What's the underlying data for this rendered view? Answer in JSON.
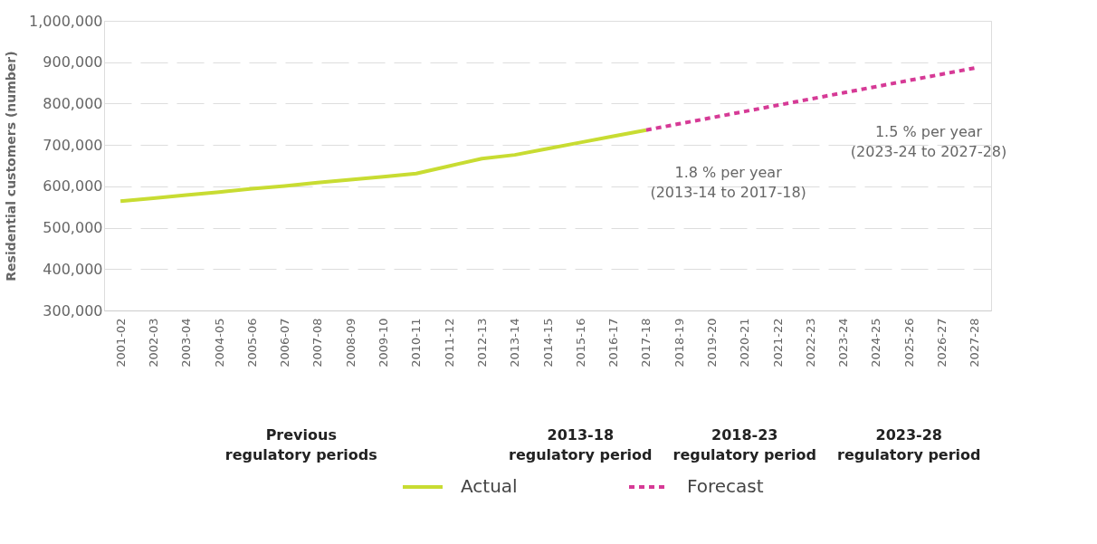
{
  "chart_data": {
    "type": "line",
    "ylabel": "Residential customers (number)",
    "categories": [
      "2001-02",
      "2002-03",
      "2003-04",
      "2004-05",
      "2005-06",
      "2006-07",
      "2007-08",
      "2008-09",
      "2009-10",
      "2010-11",
      "2011-12",
      "2012-13",
      "2013-14",
      "2014-15",
      "2015-16",
      "2016-17",
      "2017-18",
      "2018-19",
      "2019-20",
      "2020-21",
      "2021-22",
      "2022-23",
      "2023-24",
      "2024-25",
      "2025-26",
      "2026-27",
      "2027-28"
    ],
    "series": [
      {
        "name": "Actual",
        "color": "#c8dc32",
        "line_style": "solid",
        "values": [
          564000,
          571000,
          579000,
          586000,
          594000,
          601000,
          609000,
          616000,
          623000,
          631000,
          649000,
          667000,
          676000,
          691000,
          706000,
          721000,
          736000,
          null,
          null,
          null,
          null,
          null,
          null,
          null,
          null,
          null,
          null
        ]
      },
      {
        "name": "Forecast",
        "color": "#d63a96",
        "line_style": "dotted",
        "values": [
          null,
          null,
          null,
          null,
          null,
          null,
          null,
          null,
          null,
          null,
          null,
          null,
          null,
          null,
          null,
          null,
          736000,
          751000,
          766000,
          781000,
          796000,
          811000,
          826000,
          841000,
          856000,
          871000,
          886000
        ]
      }
    ],
    "ylim": [
      300000,
      1000000
    ],
    "yticks": [
      {
        "value": 300000,
        "label": "300,000"
      },
      {
        "value": 400000,
        "label": "400,000"
      },
      {
        "value": 500000,
        "label": "500,000"
      },
      {
        "value": 600000,
        "label": "600,000"
      },
      {
        "value": 700000,
        "label": "700,000"
      },
      {
        "value": 800000,
        "label": "800,000"
      },
      {
        "value": 900000,
        "label": "900,000"
      },
      {
        "value": 1000000,
        "label": "1,000,000"
      }
    ],
    "grid": "y",
    "legend": "bottom",
    "marker": "none",
    "annotations": [
      "1.8 % per year\n(2013-14 to 2017-18)",
      "1.5 % per year\n(2023-24 to 2027-28)",
      "Previous\nregulatory periods",
      "2013-18\nregulatory period",
      "2018-23\nregulatory period",
      "2023-28\nregulatory period"
    ]
  }
}
